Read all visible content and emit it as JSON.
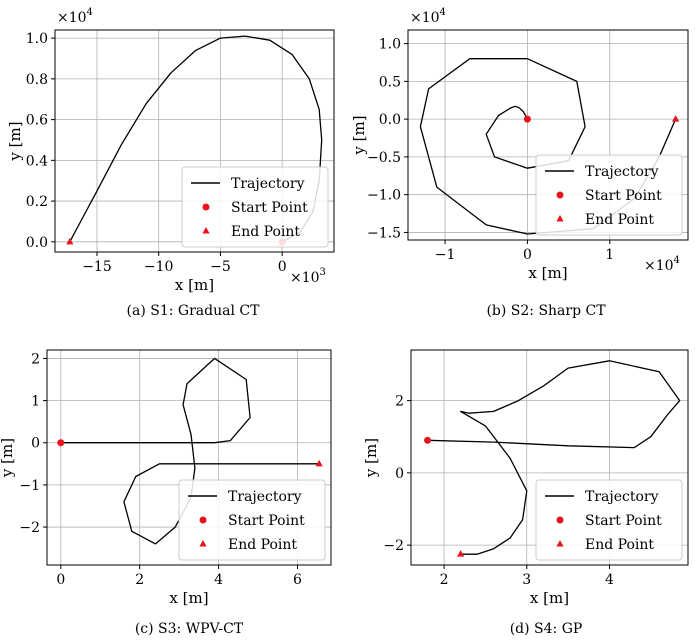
{
  "chart_data": [
    {
      "type": "line",
      "caption": "(a) S1: Gradual CT",
      "xlabel": "x [m]",
      "ylabel": "y [m]",
      "x_multiplier": "×10",
      "x_multiplier_exp": "3",
      "y_multiplier": "×10",
      "y_multiplier_exp": "4",
      "xlim": [
        -18.4,
        4.2
      ],
      "ylim": [
        -0.05,
        1.04
      ],
      "xticks": [
        -15,
        -10,
        -5,
        0
      ],
      "xtick_labels": [
        "−15",
        "−10",
        "−5",
        "0"
      ],
      "yticks": [
        0.0,
        0.2,
        0.4,
        0.6,
        0.8,
        1.0
      ],
      "ytick_labels": [
        "0.0",
        "0.2",
        "0.4",
        "0.6",
        "0.8",
        "1.0"
      ],
      "grid": true,
      "legend_location": "lower right",
      "legend": [
        "Trajectory",
        "Start Point",
        "End Point"
      ],
      "start_point": [
        0,
        0
      ],
      "end_point": [
        -17.2,
        0
      ],
      "series": [
        {
          "name": "Trajectory",
          "x": [
            0,
            1.5,
            2.5,
            3.0,
            3.2,
            3.0,
            2.2,
            0.8,
            -1.0,
            -3.0,
            -5.0,
            -7.0,
            -9.0,
            -11.0,
            -13.0,
            -15.0,
            -16.5,
            -17.2
          ],
          "y": [
            0,
            0.05,
            0.15,
            0.3,
            0.5,
            0.65,
            0.8,
            0.92,
            0.99,
            1.01,
            1.0,
            0.94,
            0.83,
            0.68,
            0.48,
            0.25,
            0.08,
            0.0
          ]
        }
      ]
    },
    {
      "type": "line",
      "caption": "(b) S2: Sharp CT",
      "xlabel": "x [m]",
      "ylabel": "y [m]",
      "x_multiplier": "×10",
      "x_multiplier_exp": "4",
      "y_multiplier": "×10",
      "y_multiplier_exp": "4",
      "xlim": [
        -1.45,
        1.95
      ],
      "ylim": [
        -1.6,
        1.18
      ],
      "xticks": [
        -1,
        0,
        1
      ],
      "xtick_labels": [
        "−1",
        "0",
        "1"
      ],
      "yticks": [
        -1.5,
        -1.0,
        -0.5,
        0.0,
        0.5,
        1.0
      ],
      "ytick_labels": [
        "−1.5",
        "−1.0",
        "−0.5",
        "0.0",
        "0.5",
        "1.0"
      ],
      "grid": true,
      "legend_location": "lower right",
      "legend": [
        "Trajectory",
        "Start Point",
        "End Point"
      ],
      "start_point": [
        0,
        0
      ],
      "end_point": [
        1.8,
        0
      ],
      "series": [
        {
          "name": "Trajectory",
          "x": [
            0,
            -0.05,
            -0.1,
            -0.15,
            -0.2,
            -0.35,
            -0.5,
            -0.4,
            0,
            0.5,
            0.7,
            0.6,
            0,
            -0.7,
            -1.2,
            -1.3,
            -1.1,
            -0.5,
            0,
            0.8,
            1.3,
            1.6,
            1.8
          ],
          "y": [
            0,
            0.1,
            0.15,
            0.17,
            0.15,
            0.05,
            -0.2,
            -0.5,
            -0.65,
            -0.55,
            -0.1,
            0.5,
            0.8,
            0.8,
            0.4,
            -0.1,
            -0.9,
            -1.4,
            -1.52,
            -1.45,
            -1.05,
            -0.5,
            0
          ]
        }
      ]
    },
    {
      "type": "line",
      "caption": "(c) S3: WPV-CT",
      "xlabel": "x [m]",
      "ylabel": "y [m]",
      "xlim": [
        -0.35,
        6.85
      ],
      "ylim": [
        -2.9,
        2.2
      ],
      "xticks": [
        0,
        2,
        4,
        6
      ],
      "xtick_labels": [
        "0",
        "2",
        "4",
        "6"
      ],
      "yticks": [
        -2,
        -1,
        0,
        1,
        2
      ],
      "ytick_labels": [
        "−2",
        "−1",
        "0",
        "1",
        "2"
      ],
      "grid": true,
      "legend_location": "lower right",
      "legend": [
        "Trajectory",
        "Start Point",
        "End Point"
      ],
      "start_point": [
        0,
        0
      ],
      "end_point": [
        6.55,
        -0.5
      ],
      "series": [
        {
          "name": "Trajectory",
          "x": [
            0,
            2.0,
            3.9,
            4.3,
            4.8,
            4.7,
            3.9,
            3.2,
            3.1,
            3.3,
            3.4,
            3.3,
            2.9,
            2.4,
            1.8,
            1.6,
            1.9,
            2.5,
            3.2,
            4.0,
            6.55
          ],
          "y": [
            0,
            0,
            0,
            0.05,
            0.6,
            1.5,
            2.0,
            1.4,
            0.9,
            0.2,
            -0.6,
            -1.3,
            -2.0,
            -2.4,
            -2.1,
            -1.4,
            -0.8,
            -0.5,
            -0.5,
            -0.5,
            -0.5
          ]
        }
      ]
    },
    {
      "type": "line",
      "caption": "(d) S4: GP",
      "xlabel": "x [m]",
      "ylabel": "y [m]",
      "xlim": [
        1.6,
        4.95
      ],
      "ylim": [
        -2.55,
        3.4
      ],
      "xticks": [
        2,
        3,
        4
      ],
      "xtick_labels": [
        "2",
        "3",
        "4"
      ],
      "yticks": [
        -2,
        0,
        2
      ],
      "ytick_labels": [
        "−2",
        "0",
        "2"
      ],
      "grid": true,
      "legend_location": "lower right",
      "legend": [
        "Trajectory",
        "Start Point",
        "End Point"
      ],
      "start_point": [
        1.8,
        0.9
      ],
      "end_point": [
        2.2,
        -2.25
      ],
      "series": [
        {
          "name": "Trajectory",
          "x": [
            1.8,
            2.6,
            3.5,
            4.3,
            4.5,
            4.7,
            4.85,
            4.6,
            4.0,
            3.5,
            3.2,
            2.9,
            2.6,
            2.3,
            2.2,
            2.5,
            2.8,
            3.0,
            2.95,
            2.8,
            2.6,
            2.4,
            2.2
          ],
          "y": [
            0.9,
            0.85,
            0.75,
            0.7,
            1.0,
            1.6,
            2.0,
            2.8,
            3.1,
            2.9,
            2.4,
            2.0,
            1.7,
            1.65,
            1.7,
            1.3,
            0.4,
            -0.5,
            -1.3,
            -1.8,
            -2.1,
            -2.25,
            -2.25
          ]
        }
      ]
    }
  ]
}
